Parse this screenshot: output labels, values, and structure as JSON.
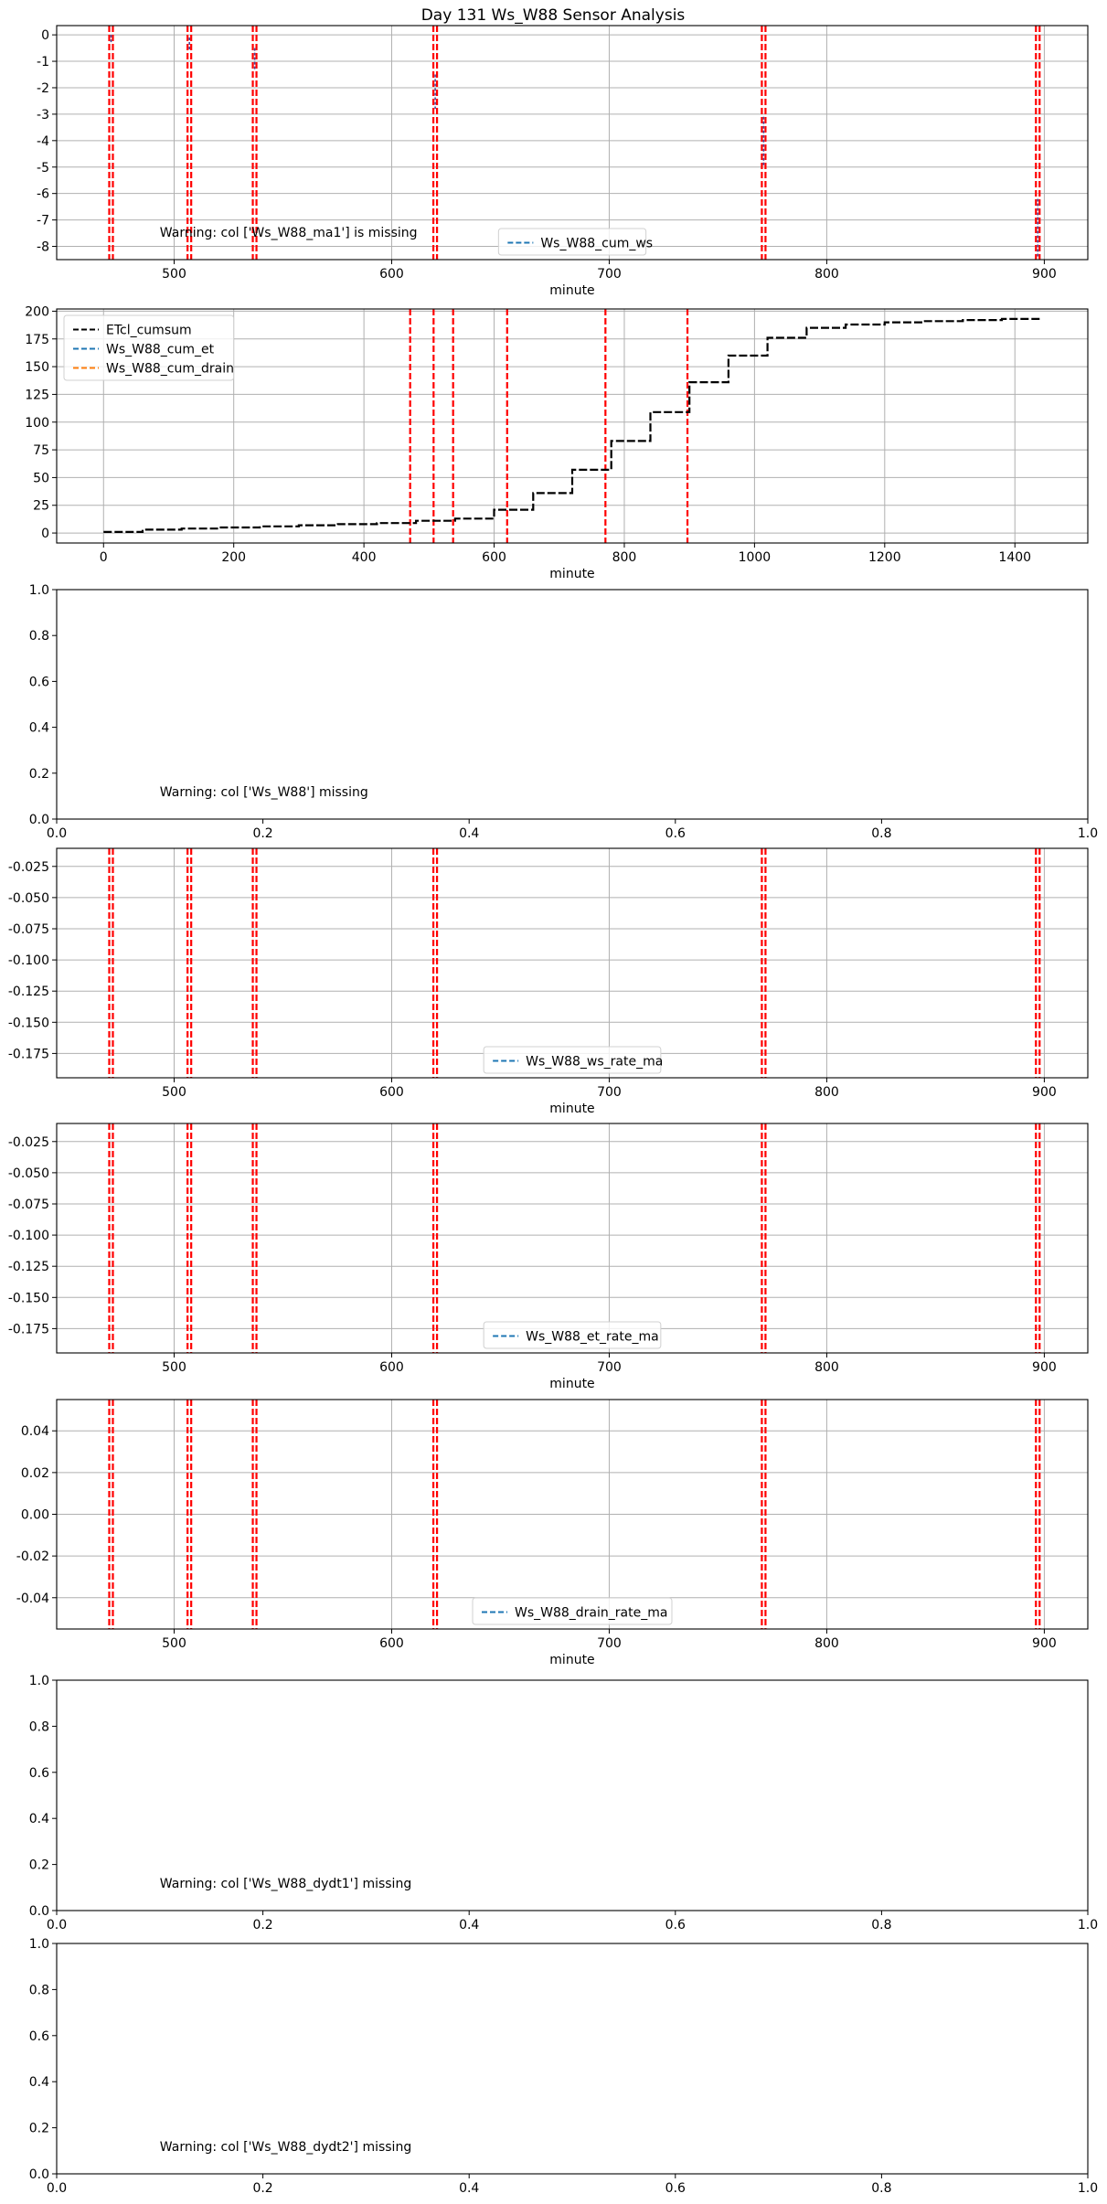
{
  "figure": {
    "title": "Day 131 Ws_W88 Sensor Analysis"
  },
  "colors": {
    "vline": "#ff0000",
    "grid": "#b0b0b0",
    "series_blue": "#1f77b4",
    "series_orange": "#ff7f0e",
    "series_black": "#000000",
    "trace": "#4b4b9b"
  },
  "event_minutes": [
    471,
    507,
    537,
    620,
    771,
    897
  ],
  "chart_data": [
    {
      "id": "cum_ws",
      "type": "line",
      "xlabel": "minute",
      "xlim": [
        446,
        920
      ],
      "ylim": [
        -8.5,
        0.35
      ],
      "xticks": [
        500,
        600,
        700,
        800,
        900
      ],
      "yticks": [
        0,
        -1,
        -2,
        -3,
        -4,
        -5,
        -6,
        -7,
        -8
      ],
      "legend": {
        "position": "lower-center",
        "entries": [
          "Ws_W88_cum_ws"
        ]
      },
      "series": [
        {
          "name": "Ws_W88_cum_ws",
          "color_key": "trace",
          "segments": [
            [
              [
                471,
                0
              ],
              [
                471,
                -0.3
              ]
            ],
            [
              [
                507,
                -0.1
              ],
              [
                507,
                -0.6
              ]
            ],
            [
              [
                537,
                -0.5
              ],
              [
                537,
                -1.3
              ]
            ],
            [
              [
                620,
                -1.5
              ],
              [
                620,
                -2.8
              ]
            ],
            [
              [
                771,
                -3.1
              ],
              [
                771,
                -5.0
              ]
            ],
            [
              [
                897,
                -6.2
              ],
              [
                897,
                -8.4
              ]
            ]
          ]
        }
      ],
      "annotation": "Warning: col ['Ws_W88_ma1'] is missing"
    },
    {
      "id": "etcl",
      "type": "line",
      "xlabel": "minute",
      "xlim": [
        -72,
        1512
      ],
      "ylim": [
        -9,
        202
      ],
      "xticks": [
        0,
        200,
        400,
        600,
        800,
        1000,
        1200,
        1400
      ],
      "yticks": [
        0,
        25,
        50,
        75,
        100,
        125,
        150,
        175,
        200
      ],
      "legend": {
        "position": "upper-left",
        "entries": [
          "ETcl_cumsum",
          "Ws_W88_cum_et",
          "Ws_W88_cum_drain"
        ]
      },
      "series": [
        {
          "name": "ETcl_cumsum",
          "color_key": "series_black",
          "x": [
            0,
            60,
            120,
            180,
            240,
            300,
            360,
            420,
            480,
            540,
            600,
            660,
            720,
            780,
            840,
            900,
            960,
            1020,
            1080,
            1140,
            1200,
            1260,
            1320,
            1380,
            1440
          ],
          "y": [
            1,
            3,
            4,
            5,
            6,
            7,
            8,
            9,
            11,
            13,
            21,
            36,
            57,
            83,
            109,
            136,
            160,
            176,
            185,
            188,
            190,
            191,
            192,
            193,
            193
          ]
        }
      ]
    },
    {
      "id": "ws_raw",
      "type": "line",
      "xlim": [
        0,
        1
      ],
      "ylim": [
        0,
        1
      ],
      "xticks": [
        0,
        0.2,
        0.4,
        0.6,
        0.8,
        1
      ],
      "xtick_labels": [
        "0.0",
        "0.2",
        "0.4",
        "0.6",
        "0.8",
        "1.0"
      ],
      "yticks": [
        0,
        0.2,
        0.4,
        0.6,
        0.8,
        1
      ],
      "ytick_labels": [
        "0.0",
        "0.2",
        "0.4",
        "0.6",
        "0.8",
        "1.0"
      ],
      "annotation": "Warning: col ['Ws_W88'] missing"
    },
    {
      "id": "ws_rate",
      "type": "line",
      "xlabel": "minute",
      "xlim": [
        446,
        920
      ],
      "ylim": [
        -0.1945,
        -0.0105
      ],
      "xticks": [
        500,
        600,
        700,
        800,
        900
      ],
      "yticks": [
        -0.025,
        -0.05,
        -0.075,
        -0.1,
        -0.125,
        -0.15,
        -0.175
      ],
      "ytick_labels": [
        "-0.025",
        "-0.050",
        "-0.075",
        "-0.100",
        "-0.125",
        "-0.150",
        "-0.175"
      ],
      "legend": {
        "position": "lower-center",
        "entries": [
          "Ws_W88_ws_rate_ma"
        ]
      },
      "series": [
        {
          "name": "Ws_W88_ws_rate_ma",
          "color_key": "series_blue"
        }
      ]
    },
    {
      "id": "et_rate",
      "type": "line",
      "xlabel": "minute",
      "xlim": [
        446,
        920
      ],
      "ylim": [
        -0.1945,
        -0.0105
      ],
      "xticks": [
        500,
        600,
        700,
        800,
        900
      ],
      "yticks": [
        -0.025,
        -0.05,
        -0.075,
        -0.1,
        -0.125,
        -0.15,
        -0.175
      ],
      "ytick_labels": [
        "-0.025",
        "-0.050",
        "-0.075",
        "-0.100",
        "-0.125",
        "-0.150",
        "-0.175"
      ],
      "legend": {
        "position": "lower-center",
        "entries": [
          "Ws_W88_et_rate_ma"
        ]
      },
      "series": [
        {
          "name": "Ws_W88_et_rate_ma",
          "color_key": "series_blue"
        }
      ]
    },
    {
      "id": "drain_rate",
      "type": "line",
      "xlabel": "minute",
      "xlim": [
        446,
        920
      ],
      "ylim": [
        -0.055,
        0.055
      ],
      "xticks": [
        500,
        600,
        700,
        800,
        900
      ],
      "yticks": [
        0.04,
        0.02,
        0,
        -0.02,
        -0.04
      ],
      "ytick_labels": [
        "0.04",
        "0.02",
        "0.00",
        "-0.02",
        "-0.04"
      ],
      "legend": {
        "position": "lower-center",
        "entries": [
          "Ws_W88_drain_rate_ma"
        ]
      },
      "series": [
        {
          "name": "Ws_W88_drain_rate_ma",
          "color_key": "series_blue"
        }
      ]
    },
    {
      "id": "dydt1",
      "type": "line",
      "xlim": [
        0,
        1
      ],
      "ylim": [
        0,
        1
      ],
      "xticks": [
        0,
        0.2,
        0.4,
        0.6,
        0.8,
        1
      ],
      "xtick_labels": [
        "0.0",
        "0.2",
        "0.4",
        "0.6",
        "0.8",
        "1.0"
      ],
      "yticks": [
        0,
        0.2,
        0.4,
        0.6,
        0.8,
        1
      ],
      "ytick_labels": [
        "0.0",
        "0.2",
        "0.4",
        "0.6",
        "0.8",
        "1.0"
      ],
      "annotation": "Warning: col ['Ws_W88_dydt1'] missing"
    },
    {
      "id": "dydt2",
      "type": "line",
      "xlim": [
        0,
        1
      ],
      "ylim": [
        0,
        1
      ],
      "xticks": [
        0,
        0.2,
        0.4,
        0.6,
        0.8,
        1
      ],
      "xtick_labels": [
        "0.0",
        "0.2",
        "0.4",
        "0.6",
        "0.8",
        "1.0"
      ],
      "yticks": [
        0,
        0.2,
        0.4,
        0.6,
        0.8,
        1
      ],
      "ytick_labels": [
        "0.0",
        "0.2",
        "0.4",
        "0.6",
        "0.8",
        "1.0"
      ],
      "annotation": "Warning: col ['Ws_W88_dydt2'] missing"
    }
  ]
}
